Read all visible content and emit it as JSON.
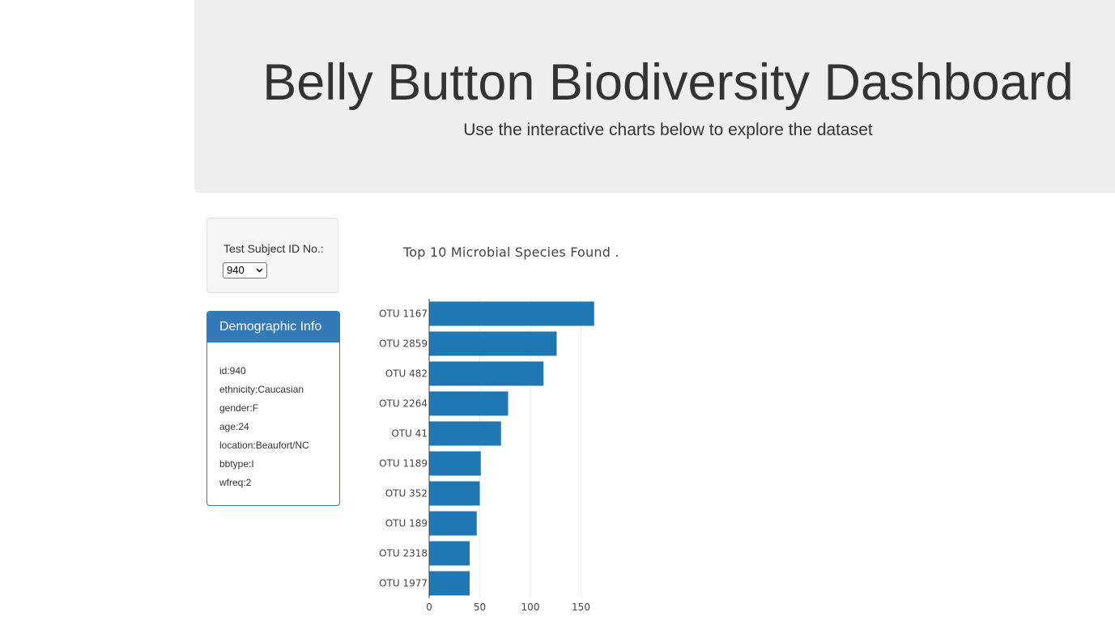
{
  "header": {
    "title": "Belly Button Biodiversity Dashboard",
    "subtitle": "Use the interactive charts below to explore the dataset"
  },
  "selector": {
    "label": "Test Subject ID No.:",
    "selected": "940"
  },
  "demographics": {
    "heading": "Demographic Info",
    "lines": [
      "id:940",
      "ethnicity:Caucasian",
      "gender:F",
      "age:24",
      "location:Beaufort/NC",
      "bbtype:I",
      "wfreq:2"
    ]
  },
  "chart_data": {
    "type": "bar",
    "orientation": "horizontal",
    "title": "Top 10 Microbial Species Found .",
    "categories": [
      "OTU 1167",
      "OTU 2859",
      "OTU 482",
      "OTU 2264",
      "OTU 41",
      "OTU 1189",
      "OTU 352",
      "OTU 189",
      "OTU 2318",
      "OTU 1977"
    ],
    "values": [
      163,
      126,
      113,
      78,
      71,
      51,
      50,
      47,
      40,
      40
    ],
    "xlim": [
      0,
      168
    ],
    "xticks": [
      0,
      50,
      100,
      150
    ],
    "grid": true,
    "color": "#1f77b4"
  }
}
